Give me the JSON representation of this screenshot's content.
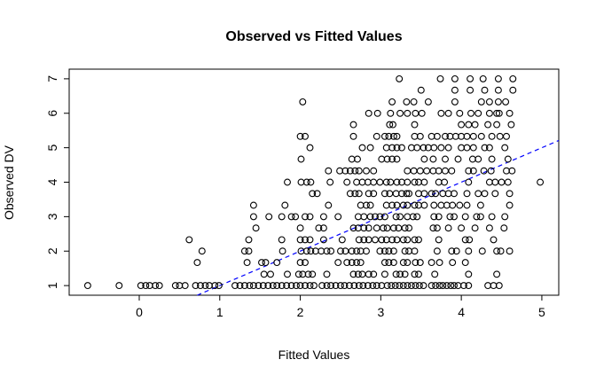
{
  "chart_data": {
    "type": "scatter",
    "title": "Observed vs Fitted Values",
    "xlabel": "Fitted Values",
    "ylabel": "Observed DV",
    "xlim": [
      -0.87,
      5.21
    ],
    "ylim": [
      0.72,
      7.28
    ],
    "x_ticks": [
      0,
      1,
      2,
      3,
      4,
      5
    ],
    "y_ticks": [
      1,
      2,
      3,
      4,
      5,
      6,
      7
    ],
    "grid": false,
    "legend": "none",
    "point_style": {
      "shape": "open-circle",
      "radius": 3.4,
      "color": "#000000"
    },
    "reference_line": {
      "type": "identity",
      "intercept": 0,
      "slope": 1,
      "color": "#0000FF",
      "style": "dashed"
    },
    "series": [
      {
        "y": 7.0,
        "x": [
          3.23,
          3.74,
          3.92,
          4.11,
          4.27,
          4.46,
          4.64
        ]
      },
      {
        "y": 6.67,
        "x": [
          3.5,
          3.92,
          4.11,
          4.29,
          4.46,
          4.64
        ]
      },
      {
        "y": 6.33,
        "x": [
          2.03,
          3.14,
          3.32,
          3.41,
          3.59,
          3.92,
          4.25,
          4.35,
          4.46,
          4.55
        ]
      },
      {
        "y": 6.0,
        "x": [
          2.85,
          2.96,
          3.12,
          3.24,
          3.33,
          3.43,
          3.51,
          3.75,
          3.84,
          3.98,
          4.12,
          4.21,
          4.35,
          4.44,
          4.47,
          4.6
        ]
      },
      {
        "y": 5.67,
        "x": [
          2.66,
          3.11,
          3.15,
          3.42,
          4.0,
          4.09,
          4.17,
          4.33,
          4.44,
          4.62
        ]
      },
      {
        "y": 5.33,
        "x": [
          2.0,
          2.06,
          2.66,
          2.95,
          3.05,
          3.1,
          3.16,
          3.2,
          3.42,
          3.49,
          3.63,
          3.7,
          3.8,
          3.86,
          3.93,
          4.0,
          4.07,
          4.15,
          4.25,
          4.38,
          4.48,
          4.56
        ]
      },
      {
        "y": 5.0,
        "x": [
          2.12,
          2.77,
          2.87,
          3.07,
          3.14,
          3.2,
          3.26,
          3.38,
          3.45,
          3.53,
          3.59,
          3.66,
          3.75,
          3.84,
          4.0,
          4.07,
          4.15,
          4.29,
          4.35,
          4.54
        ]
      },
      {
        "y": 4.67,
        "x": [
          2.01,
          2.64,
          2.71,
          3.01,
          3.08,
          3.14,
          3.2,
          3.54,
          3.65,
          3.8,
          3.96,
          4.14,
          4.21,
          4.38,
          4.58
        ]
      },
      {
        "y": 4.33,
        "x": [
          2.35,
          2.49,
          2.56,
          2.62,
          2.68,
          2.73,
          2.82,
          2.91,
          3.33,
          3.41,
          3.49,
          3.57,
          3.65,
          3.72,
          3.8,
          3.88,
          4.09,
          4.15,
          4.28,
          4.37,
          4.56,
          4.63
        ]
      },
      {
        "y": 4.0,
        "x": [
          1.84,
          2.01,
          2.08,
          2.13,
          2.37,
          2.58,
          2.7,
          2.77,
          2.84,
          2.91,
          2.99,
          3.07,
          3.12,
          3.2,
          3.26,
          3.33,
          3.42,
          3.47,
          3.54,
          3.72,
          3.79,
          4.09,
          4.35,
          4.42,
          4.5,
          4.58,
          4.98
        ]
      },
      {
        "y": 3.67,
        "x": [
          2.15,
          2.21,
          2.62,
          2.68,
          2.73,
          2.85,
          2.91,
          3.05,
          3.11,
          3.19,
          3.26,
          3.32,
          3.35,
          3.47,
          3.54,
          3.63,
          3.68,
          3.77,
          3.84,
          3.91,
          4.07,
          4.21,
          4.29,
          4.42,
          4.6
        ]
      },
      {
        "y": 3.33,
        "x": [
          1.42,
          1.81,
          2.35,
          2.75,
          2.82,
          2.87,
          3.07,
          3.14,
          3.2,
          3.28,
          3.33,
          3.42,
          3.47,
          3.54,
          3.66,
          3.75,
          3.82,
          3.89,
          3.98,
          4.07,
          4.24,
          4.6
        ]
      },
      {
        "y": 3.0,
        "x": [
          1.42,
          1.61,
          1.77,
          1.89,
          1.94,
          2.06,
          2.12,
          2.29,
          2.47,
          2.72,
          2.79,
          2.87,
          2.93,
          2.99,
          3.05,
          3.19,
          3.24,
          3.33,
          3.4,
          3.45,
          3.66,
          3.72,
          3.86,
          3.91,
          4.05,
          4.19,
          4.24,
          4.38,
          4.54
        ]
      },
      {
        "y": 2.67,
        "x": [
          1.45,
          2.0,
          2.23,
          2.29,
          2.66,
          2.72,
          2.79,
          2.85,
          2.95,
          3.03,
          3.08,
          3.16,
          3.22,
          3.3,
          3.35,
          3.65,
          3.7,
          3.84,
          4.0,
          4.17,
          4.35,
          4.53
        ]
      },
      {
        "y": 2.33,
        "x": [
          0.62,
          1.36,
          1.77,
          2.0,
          2.06,
          2.12,
          2.29,
          2.52,
          2.73,
          2.79,
          2.85,
          2.93,
          3.01,
          3.07,
          3.14,
          3.2,
          3.28,
          3.33,
          3.42,
          3.47,
          3.72,
          4.05,
          4.1,
          4.4
        ]
      },
      {
        "y": 2.0,
        "x": [
          0.78,
          1.31,
          1.36,
          1.78,
          2.01,
          2.08,
          2.13,
          2.19,
          2.26,
          2.33,
          2.38,
          2.5,
          2.56,
          2.64,
          2.7,
          2.75,
          2.82,
          2.99,
          3.05,
          3.1,
          3.16,
          3.3,
          3.35,
          3.42,
          3.7,
          3.88,
          3.94,
          4.09,
          4.26,
          4.44,
          4.49,
          4.6
        ]
      },
      {
        "y": 1.67,
        "x": [
          0.72,
          1.34,
          1.52,
          1.57,
          1.71,
          2.0,
          2.06,
          2.47,
          2.58,
          2.64,
          2.7,
          2.75,
          3.05,
          3.1,
          3.16,
          3.28,
          3.33,
          3.43,
          3.49,
          3.63,
          3.73,
          3.89,
          4.05
        ]
      },
      {
        "y": 1.33,
        "x": [
          1.55,
          1.63,
          1.84,
          1.98,
          2.03,
          2.1,
          2.15,
          2.33,
          2.66,
          2.72,
          2.77,
          2.85,
          2.91,
          3.05,
          3.19,
          3.24,
          3.3,
          3.42,
          3.47,
          3.67,
          4.09,
          4.44
        ]
      },
      {
        "y": 1.0,
        "x": [
          -0.64,
          -0.25,
          0.02,
          0.08,
          0.13,
          0.2,
          0.25,
          0.45,
          0.5,
          0.57,
          0.7,
          0.76,
          0.82,
          0.87,
          0.94,
          0.99,
          1.19,
          1.25,
          1.31,
          1.37,
          1.42,
          1.48,
          1.54,
          1.6,
          1.66,
          1.71,
          1.77,
          1.83,
          1.89,
          1.95,
          2.0,
          2.06,
          2.12,
          2.17,
          2.27,
          2.33,
          2.38,
          2.44,
          2.5,
          2.55,
          2.61,
          2.67,
          2.73,
          2.78,
          2.84,
          2.9,
          2.95,
          3.01,
          3.08,
          3.13,
          3.18,
          3.23,
          3.28,
          3.33,
          3.38,
          3.43,
          3.48,
          3.53,
          3.63,
          3.68,
          3.73,
          3.77,
          3.82,
          3.87,
          3.91,
          3.96,
          4.03,
          4.09,
          4.33,
          4.4,
          4.47
        ]
      }
    ],
    "colors": {
      "background": "#FFFFFF",
      "box": "#000000",
      "text": "#000000",
      "points": "#000000",
      "reference_line": "#0000FF"
    }
  }
}
